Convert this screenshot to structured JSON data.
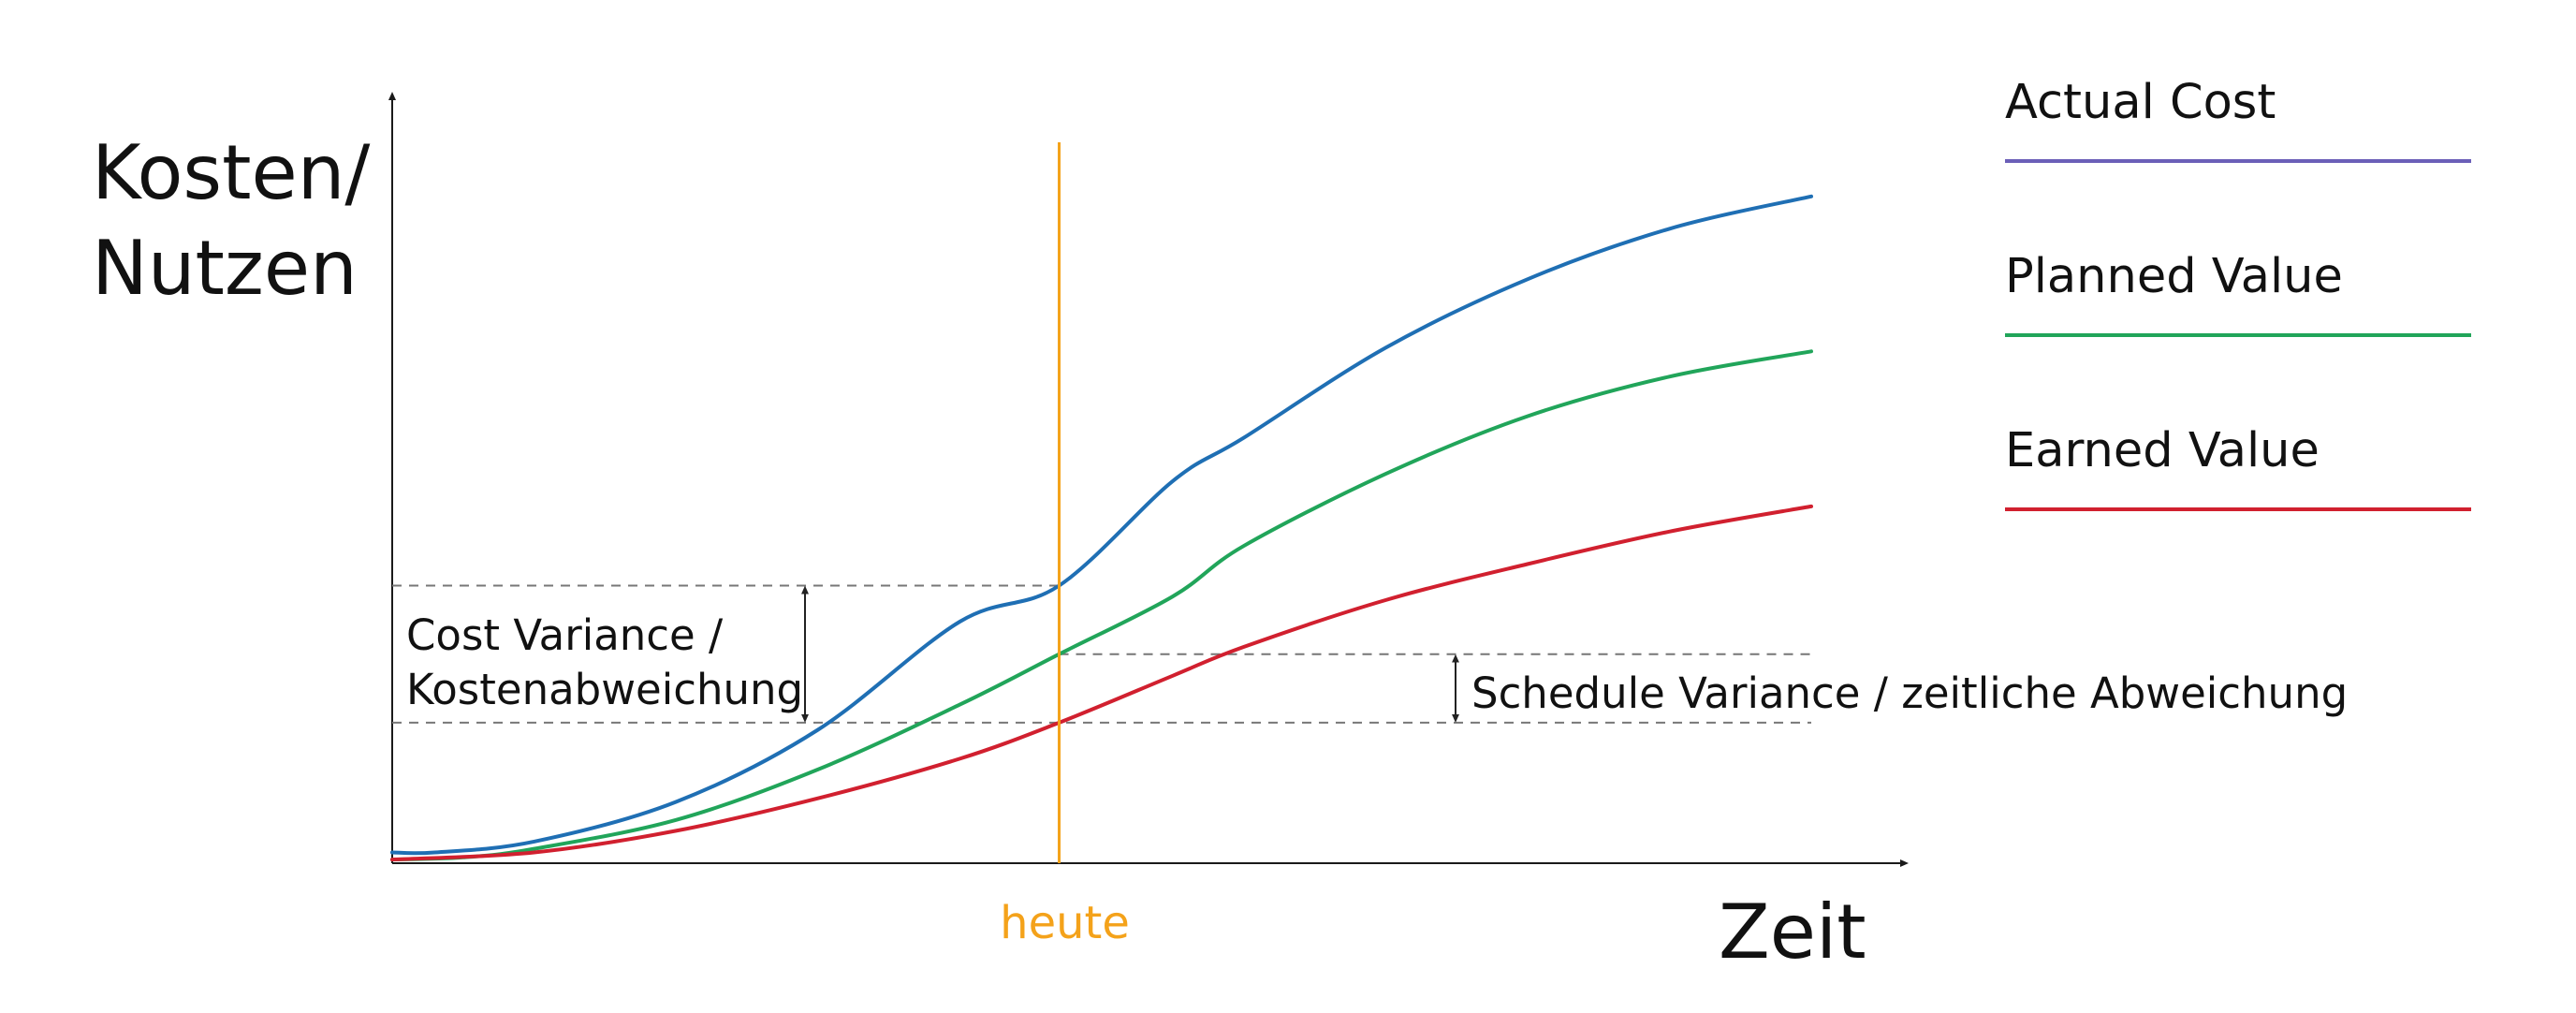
{
  "chart_data": {
    "type": "line",
    "title": "",
    "ylabel": [
      "Kosten/",
      "Nutzen"
    ],
    "xlabel": "Zeit",
    "xlim": [
      0,
      100
    ],
    "ylim": [
      0,
      100
    ],
    "grid": false,
    "legend_position": "right",
    "series": [
      {
        "name": "Actual Cost",
        "curve_color": "#1f6fb4",
        "legend_color": "#6b5fb8",
        "points": [
          [
            0,
            1.5
          ],
          [
            3,
            1.5
          ],
          [
            10,
            3
          ],
          [
            20,
            8.5
          ],
          [
            30,
            18.5
          ],
          [
            40,
            33.5
          ],
          [
            47,
            38.5
          ],
          [
            55,
            53
          ],
          [
            60,
            59
          ],
          [
            70,
            71.5
          ],
          [
            80,
            81
          ],
          [
            90,
            88
          ],
          [
            100,
            92.5
          ]
        ]
      },
      {
        "name": "Planned Value",
        "curve_color": "#21a55a",
        "legend_color": "#21a55a",
        "points": [
          [
            0,
            0.5
          ],
          [
            5,
            0.8
          ],
          [
            10,
            2
          ],
          [
            20,
            6
          ],
          [
            30,
            13
          ],
          [
            40,
            22
          ],
          [
            47,
            29
          ],
          [
            55,
            37
          ],
          [
            60,
            44
          ],
          [
            70,
            54
          ],
          [
            80,
            62
          ],
          [
            90,
            67.5
          ],
          [
            100,
            71
          ]
        ]
      },
      {
        "name": "Earned Value",
        "curve_color": "#d1202f",
        "legend_color": "#d1202f",
        "points": [
          [
            0,
            0.5
          ],
          [
            10,
            1.5
          ],
          [
            20,
            4.5
          ],
          [
            30,
            9
          ],
          [
            40,
            14.5
          ],
          [
            47,
            19.5
          ],
          [
            55,
            26
          ],
          [
            60,
            30
          ],
          [
            70,
            36.5
          ],
          [
            80,
            41.5
          ],
          [
            90,
            46
          ],
          [
            100,
            49.5
          ]
        ]
      }
    ],
    "today": {
      "x": 47,
      "label": "heute",
      "color": "#f4a21a"
    },
    "annotations": [
      {
        "text": [
          "Cost Variance /",
          "Kostenabweichung"
        ],
        "from_y": 38.5,
        "to_y": 19.5
      },
      {
        "text": [
          "Schedule Variance / zeitliche Abweichung"
        ],
        "from_y": 29,
        "to_y": 19.5
      }
    ]
  }
}
